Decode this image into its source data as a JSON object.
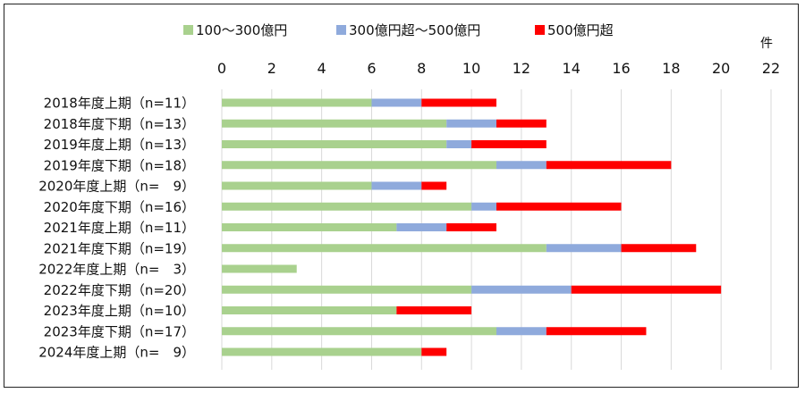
{
  "chart_data": {
    "type": "bar",
    "orientation": "horizontal",
    "stacked": true,
    "unit": "件",
    "xlim": [
      0,
      22
    ],
    "xticks": [
      0,
      2,
      4,
      6,
      8,
      10,
      12,
      14,
      16,
      18,
      20,
      22
    ],
    "grid": "vertical",
    "legend_position": "top",
    "categories": [
      "2018年度上期（n=11）",
      "2018年度下期（n=13）",
      "2019年度上期（n=13）",
      "2019年度下期（n=18）",
      "2020年度上期（n=　9）",
      "2020年度下期（n=16）",
      "2021年度上期（n=11）",
      "2021年度下期（n=19）",
      "2022年度上期（n=　3）",
      "2022年度下期（n=20）",
      "2023年度上期（n=10）",
      "2023年度下期（n=17）",
      "2024年度上期（n=　9）"
    ],
    "series": [
      {
        "name": "100～300億円",
        "color": "#a9d18e",
        "values": [
          6,
          9,
          9,
          11,
          6,
          10,
          7,
          13,
          3,
          10,
          7,
          11,
          8
        ]
      },
      {
        "name": "300億円超～500億円",
        "color": "#8faadc",
        "values": [
          2,
          2,
          1,
          2,
          2,
          1,
          2,
          3,
          0,
          4,
          0,
          2,
          0
        ]
      },
      {
        "name": "500億円超",
        "color": "#ff0000",
        "values": [
          3,
          2,
          3,
          5,
          1,
          5,
          2,
          3,
          0,
          6,
          3,
          4,
          1
        ]
      }
    ]
  }
}
